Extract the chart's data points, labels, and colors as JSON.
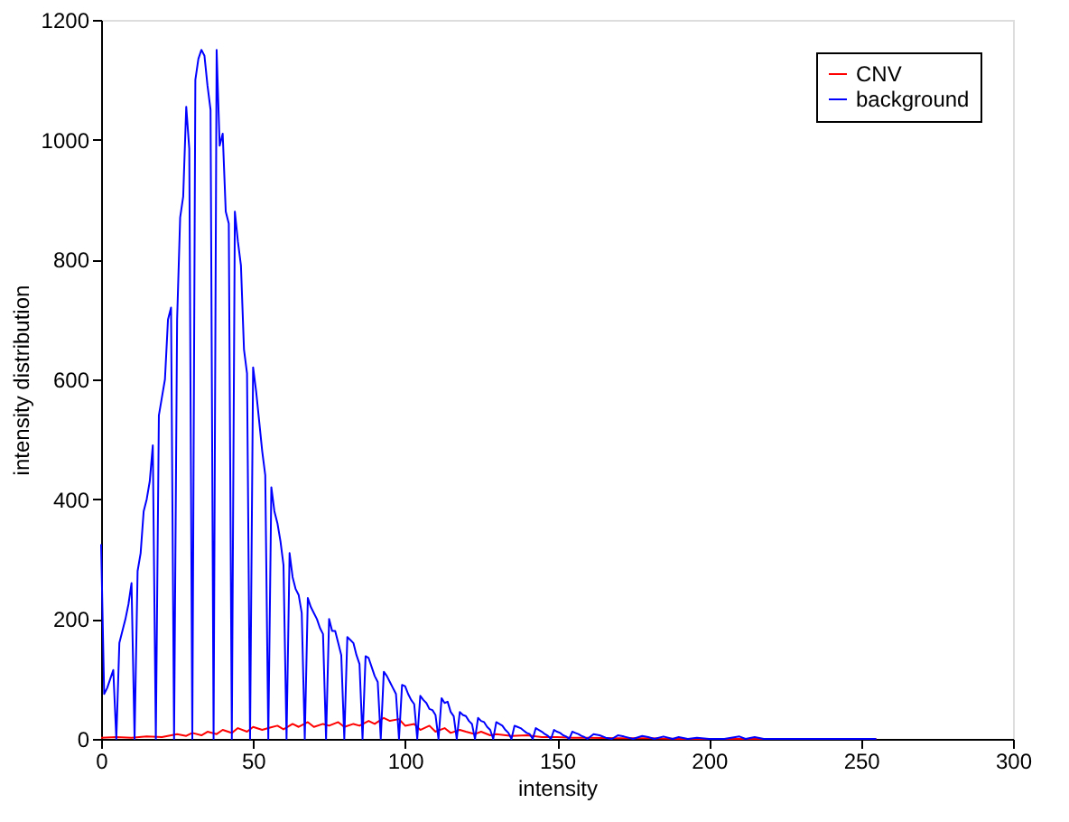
{
  "chart_data": {
    "type": "line",
    "xlabel": "intensity",
    "ylabel": "intensity distribution",
    "xlim": [
      0,
      300
    ],
    "xticks": [
      0,
      50,
      100,
      150,
      200,
      250,
      300
    ],
    "ylim": [
      0,
      1200
    ],
    "yticks": [
      0,
      200,
      400,
      600,
      800,
      1000,
      1200
    ],
    "grid": false,
    "legend": "top right",
    "marker": "none",
    "line_style": "solid",
    "series": [
      {
        "name": "CNV",
        "color": "#ff0000",
        "x": [
          0,
          5,
          10,
          15,
          20,
          25,
          28,
          30,
          33,
          35,
          38,
          40,
          43,
          45,
          48,
          50,
          53,
          55,
          58,
          60,
          63,
          65,
          68,
          70,
          73,
          75,
          78,
          80,
          83,
          85,
          88,
          90,
          93,
          95,
          98,
          100,
          103,
          105,
          108,
          110,
          113,
          115,
          118,
          120,
          123,
          125,
          128,
          130,
          135,
          140,
          145,
          150,
          155,
          160,
          170,
          180,
          190,
          200,
          220,
          255
        ],
        "values": [
          2,
          3,
          2,
          4,
          3,
          8,
          5,
          10,
          6,
          12,
          8,
          15,
          10,
          18,
          12,
          20,
          15,
          18,
          22,
          16,
          25,
          20,
          28,
          20,
          25,
          22,
          28,
          20,
          25,
          22,
          30,
          25,
          35,
          30,
          33,
          22,
          25,
          15,
          22,
          12,
          18,
          10,
          15,
          12,
          8,
          12,
          6,
          8,
          5,
          6,
          3,
          3,
          2,
          2,
          1,
          1,
          0,
          0,
          0,
          0
        ]
      },
      {
        "name": "background",
        "color": "#0000ff",
        "x": [
          0,
          1,
          2,
          3,
          4,
          5,
          6,
          7,
          8,
          9,
          10,
          11,
          12,
          13,
          14,
          15,
          16,
          17,
          18,
          19,
          20,
          21,
          22,
          23,
          24,
          25,
          26,
          27,
          28,
          29,
          30,
          31,
          32,
          33,
          34,
          35,
          36,
          37,
          38,
          39,
          40,
          41,
          42,
          43,
          44,
          45,
          46,
          47,
          48,
          49,
          50,
          51,
          52,
          53,
          54,
          55,
          56,
          57,
          58,
          59,
          60,
          61,
          62,
          63,
          64,
          65,
          66,
          67,
          68,
          69,
          70,
          71,
          72,
          73,
          74,
          75,
          76,
          77,
          78,
          79,
          80,
          81,
          82,
          83,
          84,
          85,
          86,
          87,
          88,
          89,
          90,
          91,
          92,
          93,
          94,
          95,
          96,
          97,
          98,
          99,
          100,
          101,
          102,
          103,
          104,
          105,
          106,
          107,
          108,
          109,
          110,
          111,
          112,
          113,
          114,
          115,
          116,
          117,
          118,
          119,
          120,
          121,
          122,
          123,
          124,
          125,
          126,
          127,
          128,
          129,
          130,
          131,
          132,
          133,
          134,
          135,
          136,
          137,
          138,
          139,
          140,
          141,
          142,
          143,
          144,
          145,
          146,
          147,
          148,
          149,
          150,
          151,
          152,
          153,
          154,
          155,
          156,
          157,
          158,
          159,
          160,
          162,
          164,
          166,
          168,
          170,
          172,
          175,
          178,
          180,
          182,
          185,
          188,
          190,
          193,
          196,
          200,
          205,
          210,
          212,
          215,
          218,
          230,
          255
        ],
        "values": [
          325,
          75,
          85,
          100,
          115,
          0,
          160,
          180,
          200,
          225,
          260,
          0,
          280,
          310,
          380,
          400,
          430,
          490,
          0,
          540,
          570,
          600,
          700,
          720,
          0,
          700,
          870,
          905,
          1055,
          985,
          0,
          1100,
          1135,
          1150,
          1140,
          1090,
          1050,
          0,
          1150,
          990,
          1010,
          880,
          860,
          0,
          880,
          830,
          790,
          650,
          610,
          0,
          620,
          580,
          530,
          480,
          440,
          0,
          420,
          380,
          360,
          330,
          290,
          0,
          310,
          270,
          250,
          240,
          210,
          0,
          235,
          220,
          210,
          200,
          185,
          175,
          0,
          200,
          180,
          180,
          160,
          140,
          0,
          170,
          165,
          160,
          140,
          125,
          0,
          138,
          135,
          120,
          105,
          95,
          0,
          112,
          105,
          95,
          85,
          75,
          0,
          90,
          88,
          75,
          65,
          58,
          0,
          72,
          65,
          60,
          50,
          48,
          40,
          0,
          68,
          60,
          62,
          45,
          38,
          0,
          45,
          40,
          38,
          30,
          25,
          0,
          35,
          30,
          28,
          20,
          15,
          0,
          28,
          25,
          22,
          15,
          10,
          0,
          22,
          20,
          18,
          14,
          10,
          8,
          0,
          18,
          15,
          12,
          8,
          5,
          0,
          15,
          12,
          10,
          6,
          4,
          0,
          12,
          10,
          8,
          5,
          3,
          0,
          8,
          6,
          2,
          0,
          6,
          4,
          0,
          5,
          3,
          0,
          4,
          0,
          3,
          0,
          2,
          0,
          0,
          4,
          0,
          3,
          0,
          0,
          0
        ]
      }
    ]
  }
}
